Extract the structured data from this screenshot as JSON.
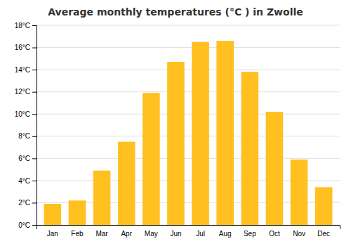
{
  "chart_data": {
    "type": "bar",
    "title": "Average monthly temperatures (°C ) in Zwolle",
    "categories": [
      "Jan",
      "Feb",
      "Mar",
      "Apr",
      "May",
      "Jun",
      "Jul",
      "Aug",
      "Sep",
      "Oct",
      "Nov",
      "Dec"
    ],
    "values": [
      1.9,
      2.2,
      4.9,
      7.5,
      11.9,
      14.7,
      16.5,
      16.6,
      13.8,
      10.2,
      5.9,
      3.4
    ],
    "color": "#FFC020",
    "ylim": [
      0,
      18
    ],
    "yticks": [
      {
        "value": 0,
        "label": "0°C"
      },
      {
        "value": 2,
        "label": "2°C"
      },
      {
        "value": 4,
        "label": "4°C"
      },
      {
        "value": 6,
        "label": "6°C"
      },
      {
        "value": 8,
        "label": "8°C"
      },
      {
        "value": 10,
        "label": "10°C"
      },
      {
        "value": 12,
        "label": "12°C"
      },
      {
        "value": 14,
        "label": "14°C"
      },
      {
        "value": 16,
        "label": "16°C"
      },
      {
        "value": 18,
        "label": "18°C"
      }
    ],
    "grid": true
  }
}
